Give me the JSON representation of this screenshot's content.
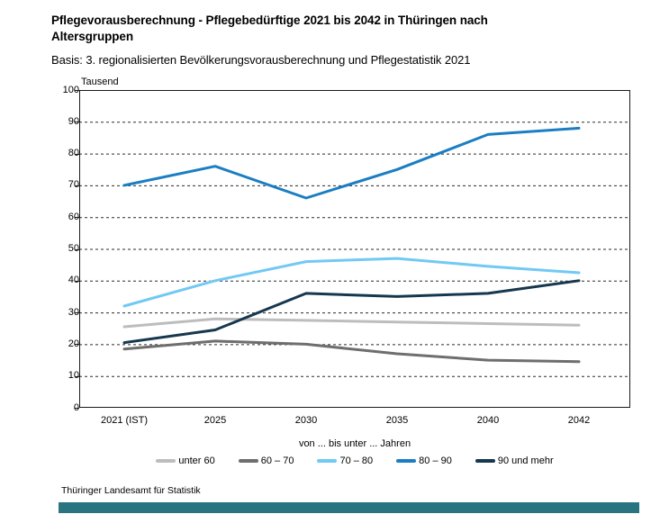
{
  "title": {
    "line1": "Pflegevorausberechnung - Pflegebedürftige 2021 bis 2042 in Thüringen  nach",
    "line2": "Altersgruppen"
  },
  "subtitle": "Basis: 3. regionalisierten Bevölkerungsvorausberechnung und Pflegestatistik 2021",
  "footer": "Thüringer Landesamt für Statistik",
  "colors": {
    "grid": "#2b2b2b",
    "axis": "#1a1a1a",
    "text": "#000000",
    "accent_bar": "#2a7482"
  },
  "chart_data": {
    "type": "line",
    "title": "Pflegevorausberechnung - Pflegebedürftige 2021 bis 2042 in Thüringen nach Altersgruppen",
    "subtitle": "Basis: 3. regionalisierten Bevölkerungsvorausberechnung und Pflegestatistik 2021",
    "unit_label": "Tausend",
    "xlabel": "von ... bis unter ... Jahren",
    "ylabel": "Tausend",
    "ylim": [
      0,
      100
    ],
    "ytick_step": 10,
    "grid": "horizontal-dashed",
    "legend_position": "bottom",
    "categories": [
      "2021 (IST)",
      "2025",
      "2030",
      "2035",
      "2040",
      "2042"
    ],
    "x_positions_pct": [
      0.0817,
      0.2467,
      0.4118,
      0.5768,
      0.7418,
      0.9069
    ],
    "series": [
      {
        "name": "unter 60",
        "color": "#bdbdbd",
        "values": [
          25.5,
          28,
          27.5,
          27,
          26.5,
          26
        ]
      },
      {
        "name": "60 – 70",
        "color": "#6e6e6e",
        "values": [
          18.5,
          21,
          20,
          17,
          15,
          14.5
        ]
      },
      {
        "name": "70 – 80",
        "color": "#72c9f3",
        "values": [
          32,
          40,
          46,
          47,
          44.5,
          42.5
        ]
      },
      {
        "name": "80 – 90",
        "color": "#1b7ec2",
        "values": [
          70,
          76,
          66,
          75,
          86,
          88
        ]
      },
      {
        "name": "90 und mehr",
        "color": "#16384e",
        "values": [
          20.5,
          24.5,
          36,
          35,
          36,
          40
        ]
      }
    ]
  }
}
